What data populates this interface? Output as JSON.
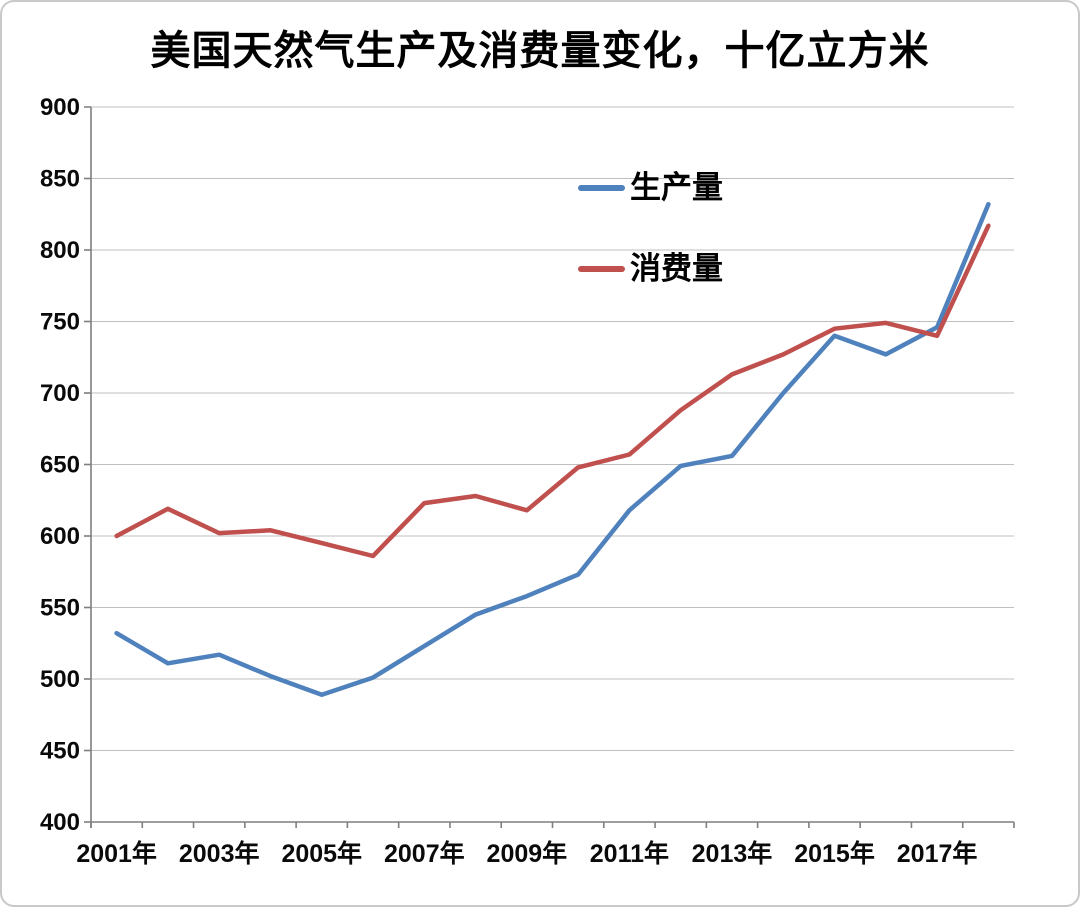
{
  "page": {
    "background": "#ffffff",
    "border_color": "#c9c9c9"
  },
  "chart_data": {
    "type": "line",
    "title": "美国天然气生产及消费量变化，十亿立方米",
    "unit_label": "十亿立方米",
    "x": [
      2001,
      2002,
      2003,
      2004,
      2005,
      2006,
      2007,
      2008,
      2009,
      2010,
      2011,
      2012,
      2013,
      2014,
      2015,
      2016,
      2017,
      2018
    ],
    "x_tick_labels": [
      "2001年",
      "2003年",
      "2005年",
      "2007年",
      "2009年",
      "2011年",
      "2013年",
      "2015年",
      "2017年"
    ],
    "x_tick_every": 2,
    "series": [
      {
        "name": "生产量",
        "color": "#4F81BD",
        "values": [
          532,
          511,
          517,
          502,
          489,
          501,
          523,
          545,
          558,
          573,
          618,
          649,
          656,
          700,
          740,
          727,
          746,
          832
        ]
      },
      {
        "name": "消费量",
        "color": "#C0504D",
        "values": [
          600,
          619,
          602,
          604,
          595,
          586,
          623,
          628,
          618,
          648,
          657,
          688,
          713,
          727,
          745,
          749,
          740,
          817
        ]
      }
    ],
    "ylim": [
      400,
      900
    ],
    "y_tick_step": 50,
    "grid": true,
    "grid_color": "#bfbfbf",
    "axis_color": "#7f7f7f",
    "legend_position": "inside-upper-center",
    "legend_orientation": "vertical"
  }
}
